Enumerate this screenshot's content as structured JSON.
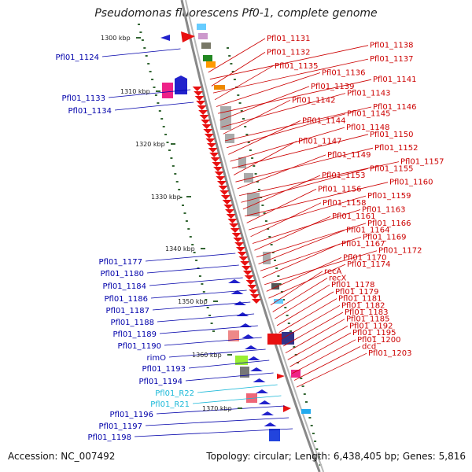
{
  "title": "Pseudomonas fluorescens Pf0-1, complete genome",
  "accession": "Accession: NC_007492",
  "info": "Topology: circular; Length: 6,438,405 bp; Genes: 5,816",
  "colors": {
    "forward_labels": "#cc0000",
    "reverse_labels": "#0000aa",
    "rna_labels": "#1ab8d8",
    "ruler": "#336633",
    "backbone": "#888888"
  },
  "scale_labels": [
    "1300 kbp",
    "1310 kbp",
    "1320 kbp",
    "1330 kbp",
    "1340 kbp",
    "1350 kbp",
    "1360 kbp",
    "1370 kbp"
  ],
  "left_labels": [
    {
      "text": "Pfl01_1124",
      "kind": "reverse"
    },
    {
      "text": "Pfl01_1133",
      "kind": "reverse"
    },
    {
      "text": "Pfl01_1134",
      "kind": "reverse"
    },
    {
      "text": "Pfl01_1177",
      "kind": "reverse"
    },
    {
      "text": "Pfl01_1180",
      "kind": "reverse"
    },
    {
      "text": "Pfl01_1184",
      "kind": "reverse"
    },
    {
      "text": "Pfl01_1186",
      "kind": "reverse"
    },
    {
      "text": "Pfl01_1187",
      "kind": "reverse"
    },
    {
      "text": "Pfl01_1188",
      "kind": "reverse"
    },
    {
      "text": "Pfl01_1189",
      "kind": "reverse"
    },
    {
      "text": "Pfl01_1190",
      "kind": "reverse"
    },
    {
      "text": "rimO",
      "kind": "reverse"
    },
    {
      "text": "Pfl01_1193",
      "kind": "reverse"
    },
    {
      "text": "Pfl01_1194",
      "kind": "reverse"
    },
    {
      "text": "Pfl01_R22",
      "kind": "rna"
    },
    {
      "text": "Pfl01_R21",
      "kind": "rna"
    },
    {
      "text": "Pfl01_1196",
      "kind": "reverse"
    },
    {
      "text": "Pfl01_1197",
      "kind": "reverse"
    },
    {
      "text": "Pfl01_1198",
      "kind": "reverse"
    }
  ],
  "right_labels": [
    {
      "text": "Pfl01_1131"
    },
    {
      "text": "Pfl01_1138"
    },
    {
      "text": "Pfl01_1132"
    },
    {
      "text": "Pfl01_1137"
    },
    {
      "text": "Pfl01_1135"
    },
    {
      "text": "Pfl01_1136"
    },
    {
      "text": "Pfl01_1141"
    },
    {
      "text": "Pfl01_1139"
    },
    {
      "text": "Pfl01_1143"
    },
    {
      "text": "Pfl01_1142"
    },
    {
      "text": "Pfl01_1146"
    },
    {
      "text": "Pfl01_1145"
    },
    {
      "text": "Pfl01_1144"
    },
    {
      "text": "Pfl01_1148"
    },
    {
      "text": "Pfl01_1150"
    },
    {
      "text": "Pfl01_1147"
    },
    {
      "text": "Pfl01_1152"
    },
    {
      "text": "Pfl01_1149"
    },
    {
      "text": "Pfl01_1157"
    },
    {
      "text": "Pfl01_1155"
    },
    {
      "text": "Pfl01_1153"
    },
    {
      "text": "Pfl01_1160"
    },
    {
      "text": "Pfl01_1156"
    },
    {
      "text": "Pfl01_1159"
    },
    {
      "text": "Pfl01_1158"
    },
    {
      "text": "Pfl01_1163"
    },
    {
      "text": "Pfl01_1161"
    },
    {
      "text": "Pfl01_1166"
    },
    {
      "text": "Pfl01_1164"
    },
    {
      "text": "Pfl01_1169"
    },
    {
      "text": "Pfl01_1167"
    },
    {
      "text": "Pfl01_1172"
    },
    {
      "text": "Pfl01_1170"
    },
    {
      "text": "Pfl01_1174"
    },
    {
      "text": "recA"
    },
    {
      "text": "recX"
    },
    {
      "text": "Pfl01_1178"
    },
    {
      "text": "Pfl01_1179"
    },
    {
      "text": "Pfl01_1181"
    },
    {
      "text": "Pfl01_1182"
    },
    {
      "text": "Pfl01_1183"
    },
    {
      "text": "Pfl01_1185"
    },
    {
      "text": "Pfl01_1192"
    },
    {
      "text": "Pfl01_1195"
    },
    {
      "text": "Pfl01_1200"
    },
    {
      "text": "dcd"
    },
    {
      "text": "Pfl01_1203"
    }
  ]
}
